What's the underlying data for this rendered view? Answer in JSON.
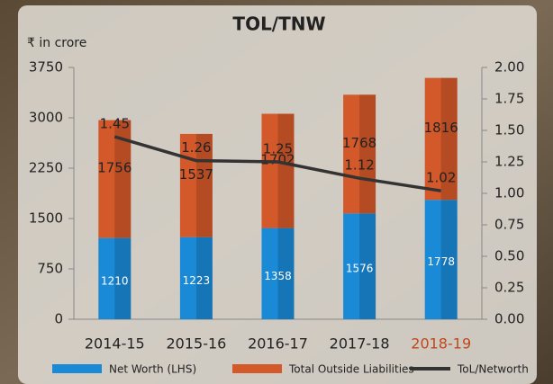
{
  "chart_data": {
    "type": "stacked_bar_line",
    "title": "TOL/TNW",
    "y_axis_label": "₹ in crore",
    "categories": [
      "2014-15",
      "2015-16",
      "2016-17",
      "2017-18",
      "2018-19"
    ],
    "category_label_colors": [
      "#222222",
      "#222222",
      "#222222",
      "#222222",
      "#c2461a"
    ],
    "series": [
      {
        "name": "Net Worth (LHS)",
        "color": "#1a8ad6",
        "values": [
          1210,
          1223,
          1358,
          1576,
          1778
        ]
      },
      {
        "name": "Total Outside Liabilities",
        "color": "#d4592a",
        "values": [
          1756,
          1537,
          1702,
          1768,
          1816
        ]
      },
      {
        "name": "ToL/Networth",
        "color": "#333333",
        "axis": "y2",
        "values": [
          1.45,
          1.26,
          1.25,
          1.12,
          1.02
        ]
      }
    ],
    "ylim": [
      0,
      3750
    ],
    "yticks": [
      0,
      750,
      1500,
      2250,
      3000,
      3750
    ],
    "y2lim": [
      0,
      2
    ],
    "y2ticks": [
      {
        "value": 0,
        "label": "0.00"
      },
      0.25,
      {
        "value": 0.5,
        "label": "0.50"
      },
      0.75,
      {
        "value": 1,
        "label": "1.00"
      },
      1.25,
      {
        "value": 1.5,
        "label": "1.50"
      },
      1.75,
      {
        "value": 2,
        "label": "2.00"
      }
    ]
  }
}
